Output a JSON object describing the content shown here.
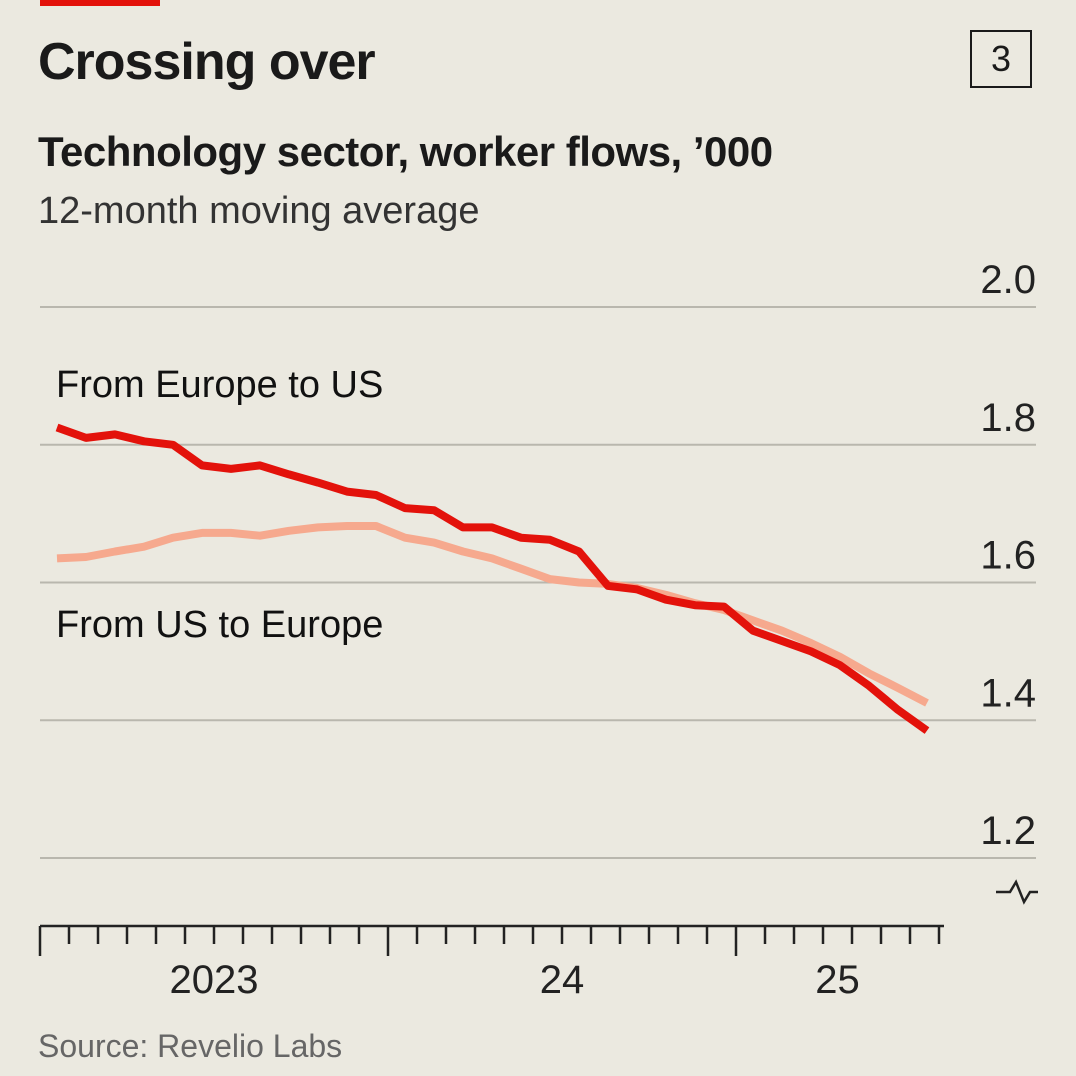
{
  "header": {
    "title": "Crossing over",
    "chart_number": "3",
    "subtitle": "Technology sector, worker flows, ’000",
    "subtitle2": "12-month moving average"
  },
  "footer": {
    "source": "Source: Revelio Labs"
  },
  "colors": {
    "europe_to_us": "#e3120b",
    "us_to_europe": "#f6a98e",
    "grid": "#b9b7ae",
    "background": "#ebe9e0"
  },
  "chart_data": {
    "type": "line",
    "title": "Crossing over",
    "ylabel": "Technology sector, worker flows, ’000",
    "ylim": [
      1.2,
      2.0
    ],
    "yticks": [
      2.0,
      1.8,
      1.6,
      1.4,
      1.2
    ],
    "ytick_labels": [
      "2.0",
      "1.8",
      "1.6",
      "1.4",
      "1.2"
    ],
    "xlim": [
      0,
      31
    ],
    "x_labels": [
      {
        "label": "2023",
        "pos": 6
      },
      {
        "label": "24",
        "pos": 18
      },
      {
        "label": "25",
        "pos": 27.5
      }
    ],
    "major_ticks": [
      0,
      12,
      24
    ],
    "axis_break": true,
    "series": [
      {
        "name": "From Europe to US",
        "label_text": "From Europe to US",
        "color_key": "europe_to_us",
        "x": [
          0,
          1,
          2,
          3,
          4,
          5,
          6,
          7,
          8,
          9,
          10,
          11,
          12,
          13,
          14,
          15,
          16,
          17,
          18,
          19,
          20,
          21,
          22,
          23,
          24,
          25,
          26,
          27,
          28,
          29,
          30
        ],
        "values": [
          1.825,
          1.81,
          1.815,
          1.805,
          1.8,
          1.77,
          1.765,
          1.77,
          1.757,
          1.745,
          1.732,
          1.727,
          1.708,
          1.705,
          1.68,
          1.68,
          1.665,
          1.662,
          1.645,
          1.595,
          1.59,
          1.575,
          1.567,
          1.565,
          1.53,
          1.515,
          1.5,
          1.48,
          1.45,
          1.415,
          1.385
        ]
      },
      {
        "name": "From US to Europe",
        "label_text": "From US to Europe",
        "color_key": "us_to_europe",
        "x": [
          0,
          1,
          2,
          3,
          4,
          5,
          6,
          7,
          8,
          9,
          10,
          11,
          12,
          13,
          14,
          15,
          16,
          17,
          18,
          19,
          20,
          21,
          22,
          23,
          24,
          25,
          26,
          27,
          28,
          29,
          30
        ],
        "values": [
          1.635,
          1.637,
          1.645,
          1.652,
          1.665,
          1.672,
          1.672,
          1.668,
          1.675,
          1.68,
          1.682,
          1.682,
          1.665,
          1.658,
          1.645,
          1.635,
          1.62,
          1.605,
          1.6,
          1.598,
          1.592,
          1.582,
          1.57,
          1.56,
          1.545,
          1.53,
          1.512,
          1.492,
          1.468,
          1.447,
          1.425
        ]
      }
    ]
  }
}
